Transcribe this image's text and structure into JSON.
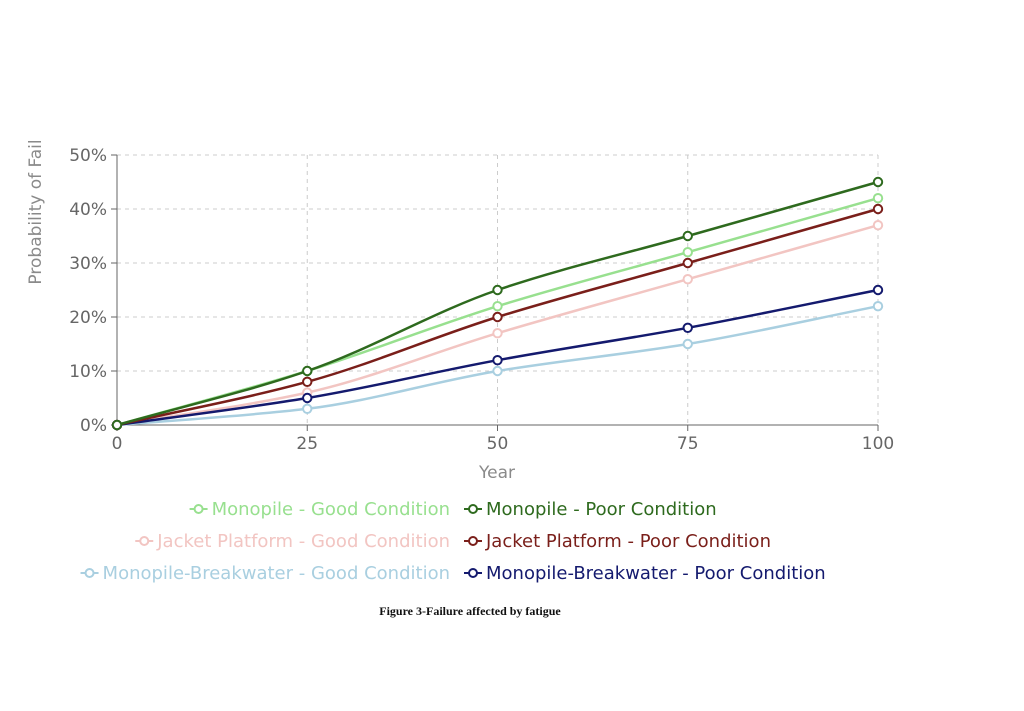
{
  "chart_data": {
    "type": "line",
    "x": [
      0,
      25,
      50,
      75,
      100
    ],
    "xlabel": "Year",
    "ylabel": "Probability of Fail",
    "xlim": [
      0,
      100
    ],
    "ylim": [
      0,
      50
    ],
    "x_ticks": [
      "0",
      "25",
      "50",
      "75",
      "100"
    ],
    "y_ticks": [
      "0%",
      "10%",
      "20%",
      "30%",
      "40%",
      "50%"
    ],
    "grid": true,
    "legend_position": "bottom",
    "series": [
      {
        "name": "Monopile - Good Condition",
        "color": "#98e08f",
        "values": [
          0,
          10,
          22,
          32,
          42
        ]
      },
      {
        "name": "Monopile - Poor Condition",
        "color": "#2e6a1e",
        "values": [
          0,
          10,
          25,
          35,
          45
        ]
      },
      {
        "name": "Jacket Platform - Good Condition",
        "color": "#f2c5c2",
        "values": [
          0,
          6,
          17,
          27,
          37
        ]
      },
      {
        "name": "Jacket Platform - Poor Condition",
        "color": "#7a1f1a",
        "values": [
          0,
          8,
          20,
          30,
          40
        ]
      },
      {
        "name": "Monopile-Breakwater - Good Condition",
        "color": "#a9cfe0",
        "values": [
          0,
          3,
          10,
          15,
          22
        ]
      },
      {
        "name": "Monopile-Breakwater - Poor Condition",
        "color": "#141a6e",
        "values": [
          0,
          5,
          12,
          18,
          25
        ]
      }
    ]
  },
  "caption": "Figure 3-Failure affected by fatigue"
}
